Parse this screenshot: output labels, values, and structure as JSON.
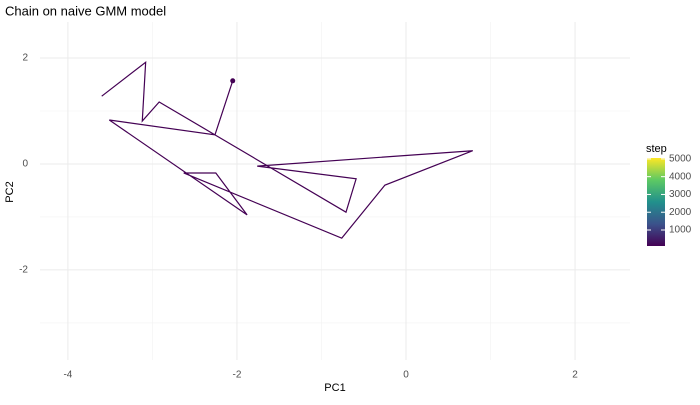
{
  "chart_data": {
    "type": "path",
    "title": "Chain on naive GMM model",
    "x_label": "PC1",
    "y_label": "PC2",
    "x": [
      -3.6,
      -3.08,
      -3.12,
      -2.92,
      -2.26,
      -0.71,
      -0.59,
      -1.76,
      0.79,
      -0.25,
      -0.76,
      -2.63,
      -2.25,
      -1.88,
      -3.51,
      -2.26,
      -2.05
    ],
    "y": [
      1.28,
      1.92,
      0.81,
      1.17,
      0.55,
      -0.91,
      -0.28,
      -0.04,
      0.25,
      -0.4,
      -1.4,
      -0.17,
      -0.17,
      -0.96,
      0.83,
      0.55,
      1.57
    ],
    "color": "#440154",
    "end_point": true,
    "xlim": [
      -4.33,
      2.65
    ],
    "ylim": [
      -3.7,
      2.68
    ],
    "xticks": [
      -4,
      -2,
      0,
      2
    ],
    "yticks": [
      -2,
      0,
      2
    ],
    "minor_xticks": [
      -3,
      -1,
      1
    ],
    "minor_yticks": [
      -3,
      -1,
      1
    ],
    "grid": true,
    "legend": {
      "title": "step",
      "ticks": [
        1000,
        2000,
        3000,
        4000,
        5000
      ],
      "lim": [
        100,
        5050
      ]
    }
  }
}
